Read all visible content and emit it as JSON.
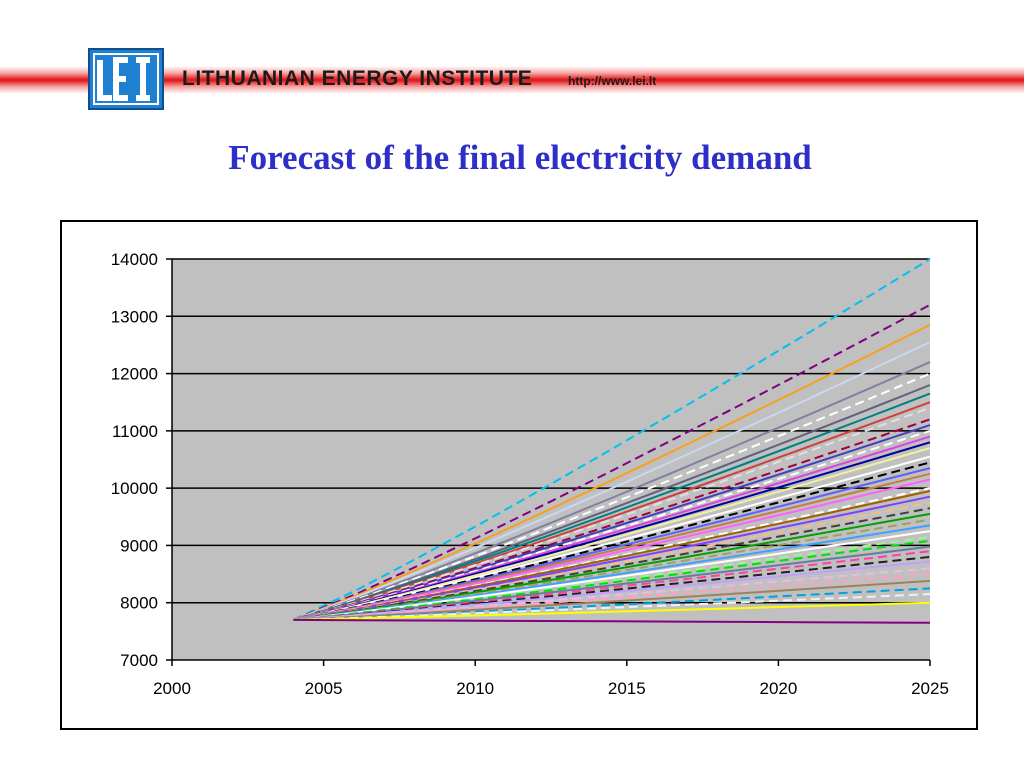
{
  "header": {
    "org_name": "LITHUANIAN ENERGY INSTITUTE",
    "url": "http://www.lei.lt",
    "logo_text": "LEI",
    "band_color": "#e01010",
    "logo_color": "#1f7fd0"
  },
  "title": "Forecast of the final electricity demand",
  "title_color": "#2e2ec8",
  "chart_data": {
    "type": "line",
    "title": "",
    "xlabel": "",
    "ylabel": "",
    "xlim": [
      2000,
      2025
    ],
    "ylim": [
      7000,
      14000
    ],
    "x_ticks": [
      2000,
      2005,
      2010,
      2015,
      2020,
      2025
    ],
    "y_ticks": [
      7000,
      8000,
      9000,
      10000,
      11000,
      12000,
      13000,
      14000
    ],
    "grid": "horizontal",
    "plot_background": "#c0c0c0",
    "legend": "none",
    "start": {
      "x": 2004,
      "y": 7700
    },
    "series": [
      {
        "end": 14000,
        "color": "#00c0f0",
        "dash": true
      },
      {
        "end": 13200,
        "color": "#800080",
        "dash": true
      },
      {
        "end": 12850,
        "color": "#f7a020",
        "dash": false
      },
      {
        "end": 12550,
        "color": "#c8d8f0",
        "dash": false
      },
      {
        "end": 12200,
        "color": "#8080a0",
        "dash": false
      },
      {
        "end": 12000,
        "color": "#ffffff",
        "dash": true
      },
      {
        "end": 11800,
        "color": "#606080",
        "dash": false
      },
      {
        "end": 11650,
        "color": "#008080",
        "dash": false
      },
      {
        "end": 11500,
        "color": "#d04040",
        "dash": false
      },
      {
        "end": 11400,
        "color": "#e0e0e0",
        "dash": true
      },
      {
        "end": 11200,
        "color": "#a00040",
        "dash": true
      },
      {
        "end": 11100,
        "color": "#4040c0",
        "dash": false
      },
      {
        "end": 11000,
        "color": "#ffffff",
        "dash": true
      },
      {
        "end": 10900,
        "color": "#e040e0",
        "dash": false
      },
      {
        "end": 10800,
        "color": "#0000a0",
        "dash": false
      },
      {
        "end": 10700,
        "color": "#f0f0a0",
        "dash": false
      },
      {
        "end": 10550,
        "color": "#ffffff",
        "dash": false
      },
      {
        "end": 10450,
        "color": "#000000",
        "dash": true
      },
      {
        "end": 10350,
        "color": "#6060ff",
        "dash": false
      },
      {
        "end": 10250,
        "color": "#c08040",
        "dash": false
      },
      {
        "end": 10150,
        "color": "#ff60ff",
        "dash": false
      },
      {
        "end": 10000,
        "color": "#ffffff",
        "dash": true
      },
      {
        "end": 9950,
        "color": "#a06000",
        "dash": false
      },
      {
        "end": 9850,
        "color": "#8040ff",
        "dash": false
      },
      {
        "end": 9750,
        "color": "#f0c080",
        "dash": true
      },
      {
        "end": 9650,
        "color": "#404040",
        "dash": true
      },
      {
        "end": 9550,
        "color": "#00a000",
        "dash": false
      },
      {
        "end": 9450,
        "color": "#a0a060",
        "dash": true
      },
      {
        "end": 9350,
        "color": "#40a0ff",
        "dash": false
      },
      {
        "end": 9250,
        "color": "#ffffff",
        "dash": false
      },
      {
        "end": 9150,
        "color": "#a0f0a0",
        "dash": true
      },
      {
        "end": 9080,
        "color": "#00e000",
        "dash": true
      },
      {
        "end": 8980,
        "color": "#6080a0",
        "dash": false
      },
      {
        "end": 8900,
        "color": "#ff40a0",
        "dash": true
      },
      {
        "end": 8800,
        "color": "#202020",
        "dash": true
      },
      {
        "end": 8720,
        "color": "#c0a0ff",
        "dash": false
      },
      {
        "end": 8600,
        "color": "#e0c0e0",
        "dash": true
      },
      {
        "end": 8500,
        "color": "#ffa0c0",
        "dash": true
      },
      {
        "end": 8380,
        "color": "#a08060",
        "dash": false
      },
      {
        "end": 8250,
        "color": "#00a0e0",
        "dash": true
      },
      {
        "end": 8150,
        "color": "#f0f0f0",
        "dash": true
      },
      {
        "end": 8000,
        "color": "#ffff00",
        "dash": false
      },
      {
        "end": 7650,
        "color": "#800080",
        "dash": false
      }
    ]
  }
}
